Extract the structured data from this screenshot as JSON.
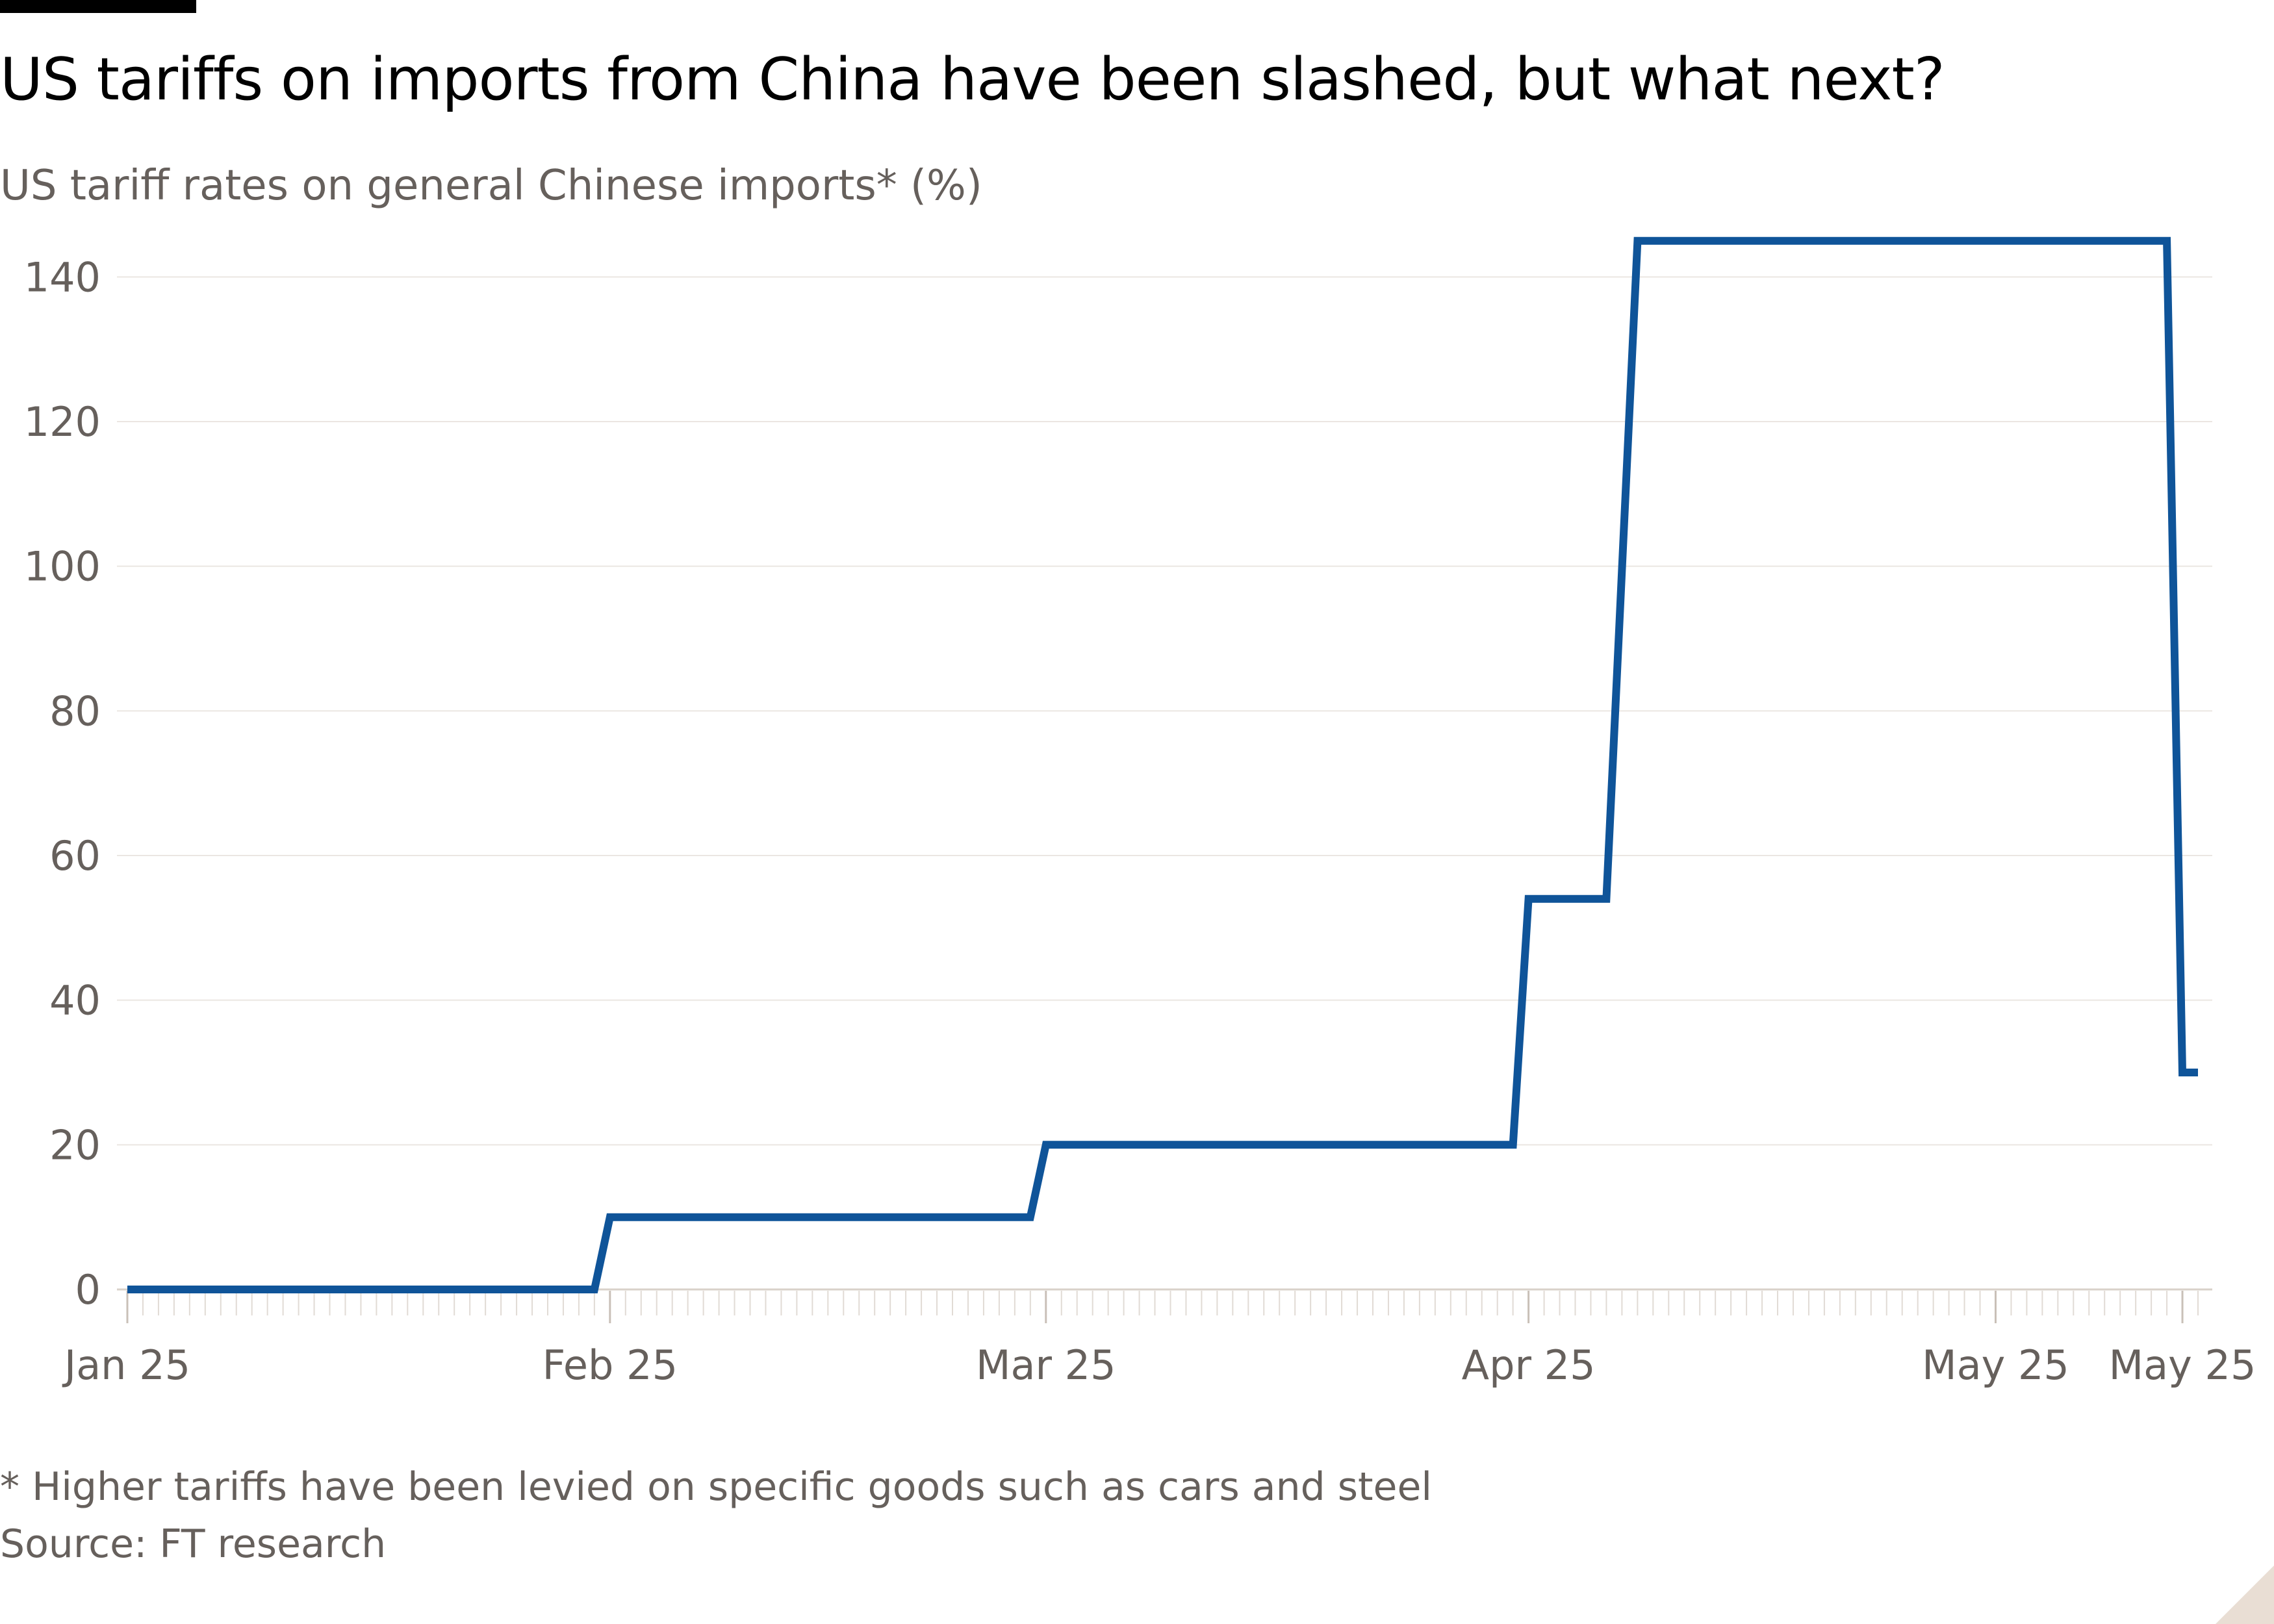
{
  "header": {
    "title": "US tariffs on imports from China have been slashed, but what next?",
    "subtitle": "US tariff rates on general Chinese imports* (%)"
  },
  "footer": {
    "note": "* Higher tariffs have been levied on specific goods such as cars and steel",
    "source": "Source: FT research"
  },
  "colors": {
    "line": "#0f5499",
    "grid": "#ebe6e2",
    "axis_text": "#66605c",
    "tick": "#e1dbd5",
    "background": "#ffffff"
  },
  "chart_data": {
    "type": "line",
    "title": "US tariffs on imports from China have been slashed, but what next?",
    "subtitle": "US tariff rates on general Chinese imports* (%)",
    "xlabel": "",
    "ylabel": "",
    "x_range": [
      "2025-01-01",
      "2025-05-14"
    ],
    "ylim": [
      0,
      150
    ],
    "y_ticks": [
      0,
      20,
      40,
      60,
      80,
      100,
      120,
      140
    ],
    "x_tick_labels": [
      {
        "date": "2025-01-01",
        "label": "Jan 25"
      },
      {
        "date": "2025-02-01",
        "label": "Feb 25"
      },
      {
        "date": "2025-03-01",
        "label": "Mar 25"
      },
      {
        "date": "2025-04-01",
        "label": "Apr 25"
      },
      {
        "date": "2025-05-01",
        "label": "May 25"
      },
      {
        "date": "2025-05-13",
        "label": "May 25"
      }
    ],
    "grid": "horizontal",
    "series": [
      {
        "step": true,
        "points": [
          {
            "x": "2025-01-01",
            "y": 0
          },
          {
            "x": "2025-01-31",
            "y": 0
          },
          {
            "x": "2025-02-01",
            "y": 10
          },
          {
            "x": "2025-02-28",
            "y": 10
          },
          {
            "x": "2025-03-01",
            "y": 20
          },
          {
            "x": "2025-03-31",
            "y": 20
          },
          {
            "x": "2025-04-01",
            "y": 54
          },
          {
            "x": "2025-04-06",
            "y": 54
          },
          {
            "x": "2025-04-08",
            "y": 145
          },
          {
            "x": "2025-05-12",
            "y": 145
          },
          {
            "x": "2025-05-13",
            "y": 30
          },
          {
            "x": "2025-05-14",
            "y": 30
          }
        ]
      }
    ]
  }
}
